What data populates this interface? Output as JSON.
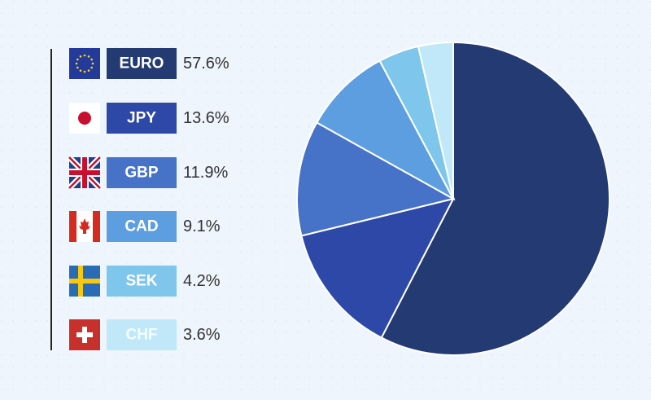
{
  "chart_data": {
    "type": "pie",
    "categories": [
      "EURO",
      "JPY",
      "GBP",
      "CAD",
      "SEK",
      "CHF"
    ],
    "values": [
      57.6,
      13.6,
      11.9,
      9.1,
      4.2,
      3.6
    ],
    "value_labels": [
      "57.6%",
      "13.6%",
      "11.9%",
      "9.1%",
      "4.2%",
      "3.6%"
    ],
    "colors": [
      "#233a73",
      "#2e48a8",
      "#4672c8",
      "#5d9ee0",
      "#7ec6ec",
      "#c0e8f8"
    ]
  }
}
